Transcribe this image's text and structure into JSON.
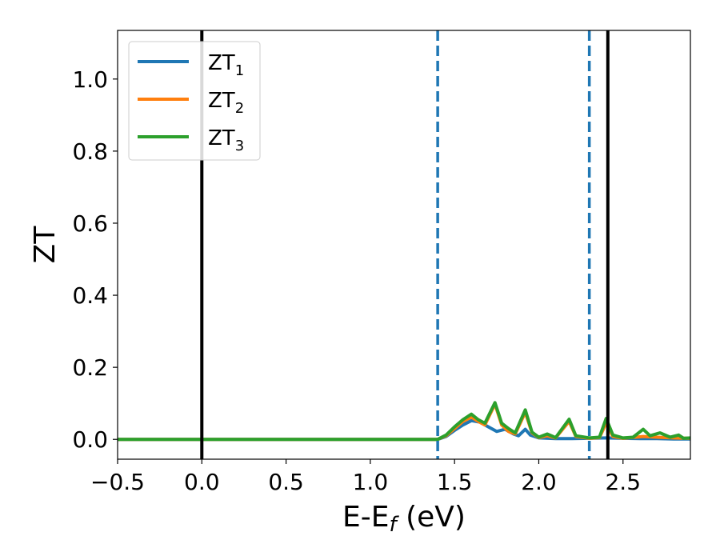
{
  "chart_data": {
    "type": "line",
    "xlabel": {
      "main": "E-E",
      "sub": "f",
      "suffix": " (eV)"
    },
    "ylabel": "ZT",
    "xlim": [
      -0.5,
      2.9
    ],
    "ylim": [
      -0.055,
      1.135
    ],
    "xticks": [
      -0.5,
      0.0,
      0.5,
      1.0,
      1.5,
      2.0,
      2.5
    ],
    "xtick_labels": [
      "−0.5",
      "0.0",
      "0.5",
      "1.0",
      "1.5",
      "2.0",
      "2.5"
    ],
    "yticks": [
      0.0,
      0.2,
      0.4,
      0.6,
      0.8,
      1.0
    ],
    "ytick_labels": [
      "0.0",
      "0.2",
      "0.4",
      "0.6",
      "0.8",
      "1.0"
    ],
    "grid": false,
    "legend_position": "top-left",
    "vlines": [
      {
        "x": 0.0,
        "style": "solid",
        "color": "#000000"
      },
      {
        "x": 2.41,
        "style": "solid",
        "color": "#000000"
      },
      {
        "x": 1.4,
        "style": "dashed",
        "color": "#1f77b4"
      },
      {
        "x": 2.3,
        "style": "dashed",
        "color": "#1f77b4"
      }
    ],
    "series": [
      {
        "name": "ZT",
        "sub": "1",
        "color": "#1f77b4",
        "points": [
          [
            -0.5,
            0
          ],
          [
            1.4,
            0
          ],
          [
            1.45,
            0.008
          ],
          [
            1.5,
            0.025
          ],
          [
            1.55,
            0.04
          ],
          [
            1.6,
            0.052
          ],
          [
            1.65,
            0.048
          ],
          [
            1.7,
            0.035
          ],
          [
            1.75,
            0.022
          ],
          [
            1.8,
            0.028
          ],
          [
            1.85,
            0.015
          ],
          [
            1.88,
            0.01
          ],
          [
            1.92,
            0.028
          ],
          [
            1.95,
            0.012
          ],
          [
            2.0,
            0.004
          ],
          [
            2.1,
            0.002
          ],
          [
            2.2,
            0.002
          ],
          [
            2.3,
            0.003
          ],
          [
            2.4,
            0.004
          ],
          [
            2.5,
            0.003
          ],
          [
            2.6,
            0.002
          ],
          [
            2.7,
            0.002
          ],
          [
            2.8,
            0.001
          ],
          [
            2.9,
            0.001
          ]
        ]
      },
      {
        "name": "ZT",
        "sub": "2",
        "color": "#ff7f0e",
        "points": [
          [
            -0.5,
            0
          ],
          [
            1.4,
            0
          ],
          [
            1.45,
            0.01
          ],
          [
            1.5,
            0.03
          ],
          [
            1.55,
            0.05
          ],
          [
            1.6,
            0.062
          ],
          [
            1.64,
            0.05
          ],
          [
            1.68,
            0.04
          ],
          [
            1.74,
            0.098
          ],
          [
            1.78,
            0.04
          ],
          [
            1.82,
            0.022
          ],
          [
            1.86,
            0.015
          ],
          [
            1.92,
            0.075
          ],
          [
            1.96,
            0.018
          ],
          [
            2.0,
            0.005
          ],
          [
            2.05,
            0.01
          ],
          [
            2.1,
            0.004
          ],
          [
            2.18,
            0.05
          ],
          [
            2.22,
            0.008
          ],
          [
            2.3,
            0.003
          ],
          [
            2.36,
            0.005
          ],
          [
            2.4,
            0.045
          ],
          [
            2.44,
            0.008
          ],
          [
            2.5,
            0.003
          ],
          [
            2.62,
            0.008
          ],
          [
            2.7,
            0.006
          ],
          [
            2.8,
            0.004
          ],
          [
            2.9,
            0.003
          ]
        ]
      },
      {
        "name": "ZT",
        "sub": "3",
        "color": "#2ca02c",
        "points": [
          [
            -0.5,
            0
          ],
          [
            1.4,
            0
          ],
          [
            1.45,
            0.012
          ],
          [
            1.5,
            0.035
          ],
          [
            1.55,
            0.055
          ],
          [
            1.6,
            0.07
          ],
          [
            1.64,
            0.055
          ],
          [
            1.68,
            0.045
          ],
          [
            1.74,
            0.102
          ],
          [
            1.78,
            0.045
          ],
          [
            1.82,
            0.03
          ],
          [
            1.86,
            0.018
          ],
          [
            1.92,
            0.082
          ],
          [
            1.96,
            0.02
          ],
          [
            2.0,
            0.006
          ],
          [
            2.05,
            0.015
          ],
          [
            2.1,
            0.005
          ],
          [
            2.18,
            0.056
          ],
          [
            2.22,
            0.01
          ],
          [
            2.3,
            0.004
          ],
          [
            2.36,
            0.006
          ],
          [
            2.4,
            0.058
          ],
          [
            2.44,
            0.012
          ],
          [
            2.5,
            0.004
          ],
          [
            2.56,
            0.006
          ],
          [
            2.62,
            0.028
          ],
          [
            2.66,
            0.01
          ],
          [
            2.72,
            0.018
          ],
          [
            2.78,
            0.006
          ],
          [
            2.83,
            0.012
          ],
          [
            2.86,
            0.003
          ],
          [
            2.9,
            0.004
          ]
        ]
      }
    ]
  }
}
